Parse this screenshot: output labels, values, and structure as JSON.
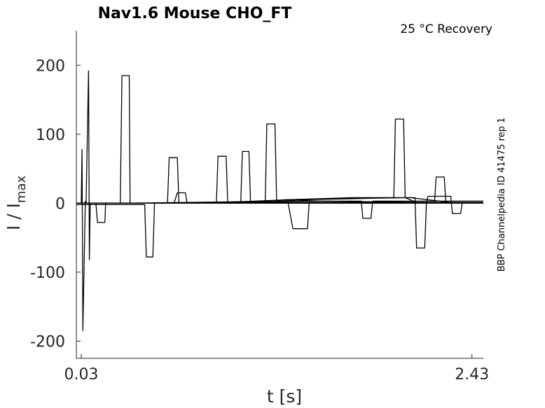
{
  "chart_data": {
    "type": "line",
    "title": "Nav1.6  Mouse  CHO_FT",
    "subtitle": "25 °C  Recovery",
    "xlabel": "t [s]",
    "ylabel_main": "I / I",
    "ylabel_sub": "max",
    "side_label": "BBP Channelpedia ID 41475 rep 1",
    "xlim": [
      0.0,
      2.5
    ],
    "ylim": [
      -225,
      250
    ],
    "x_ticks": [
      {
        "value": 0.03,
        "label": "0.03"
      },
      {
        "value": 2.43,
        "label": "2.43"
      }
    ],
    "y_ticks": [
      {
        "value": 200,
        "label": "200"
      },
      {
        "value": 100,
        "label": "100"
      },
      {
        "value": 0,
        "label": "0"
      },
      {
        "value": -100,
        "label": "-100"
      },
      {
        "value": -200,
        "label": "-200"
      }
    ],
    "grid": false,
    "line_color": "#000000",
    "series": [
      {
        "x": [
          0.0,
          0.03,
          0.035,
          0.04,
          0.055,
          0.06,
          0.3,
          1.0,
          1.3,
          1.7,
          1.9,
          2.05,
          2.3,
          2.5
        ],
        "y": [
          0,
          0,
          78,
          -185,
          3,
          0,
          0,
          2,
          5,
          8,
          8,
          8,
          1,
          1
        ]
      },
      {
        "x": [
          0.0,
          0.06,
          0.075,
          0.08,
          0.085,
          0.1,
          0.2,
          0.5,
          0.8,
          1.0,
          1.2,
          1.5,
          1.8,
          2.0,
          2.5
        ],
        "y": [
          0,
          0,
          192,
          -82,
          0,
          0,
          0,
          0,
          0,
          1,
          1,
          1,
          1,
          1,
          1
        ]
      },
      {
        "x": [
          0.0,
          0.12,
          0.13,
          0.175,
          0.18,
          0.6,
          0.62,
          0.67,
          0.68,
          1.0,
          1.5,
          2.0,
          2.5
        ],
        "y": [
          0,
          0,
          -28,
          -28,
          0,
          0,
          15,
          15,
          0,
          0,
          0,
          0,
          0
        ]
      },
      {
        "x": [
          0.0,
          0.27,
          0.28,
          0.325,
          0.33,
          0.36,
          0.8,
          1.2,
          1.5,
          2.0,
          2.5
        ],
        "y": [
          0,
          0,
          185,
          185,
          0,
          0,
          0,
          0,
          0,
          0,
          0
        ]
      },
      {
        "x": [
          0.0,
          0.42,
          0.43,
          0.47,
          0.48,
          0.9,
          1.3,
          1.33,
          1.42,
          1.43,
          2.5
        ],
        "y": [
          -2,
          -2,
          -78,
          -78,
          0,
          1,
          1,
          -37,
          -37,
          1,
          1
        ]
      },
      {
        "x": [
          0.0,
          0.56,
          0.57,
          0.62,
          0.63,
          1.0,
          1.5,
          1.75,
          1.76,
          1.81,
          1.82,
          2.5
        ],
        "y": [
          0,
          0,
          66,
          66,
          0,
          2,
          3,
          3,
          -22,
          -22,
          3,
          3
        ]
      },
      {
        "x": [
          0.0,
          0.86,
          0.87,
          0.92,
          0.93,
          1.3,
          1.6,
          1.95,
          1.96,
          2.01,
          2.02,
          2.1,
          2.5
        ],
        "y": [
          0,
          0,
          68,
          68,
          0,
          5,
          7,
          8,
          122,
          122,
          8,
          0,
          0
        ]
      },
      {
        "x": [
          0.0,
          1.01,
          1.02,
          1.06,
          1.07,
          1.4,
          1.8,
          2.08,
          2.09,
          2.14,
          2.15,
          2.5
        ],
        "y": [
          0,
          0,
          75,
          75,
          0,
          5,
          7,
          8,
          -65,
          -65,
          0,
          0
        ]
      },
      {
        "x": [
          0.0,
          1.16,
          1.17,
          1.22,
          1.23,
          1.28,
          1.5,
          2.2,
          2.21,
          2.26,
          2.27,
          2.5
        ],
        "y": [
          0,
          0,
          115,
          115,
          3,
          5,
          3,
          1,
          38,
          38,
          0,
          0
        ]
      },
      {
        "x": [
          0.0,
          0.3,
          0.8,
          1.3,
          1.8,
          2.15,
          2.16,
          2.3,
          2.31,
          2.36,
          2.37,
          2.5
        ],
        "y": [
          0,
          0,
          0,
          0,
          0,
          0,
          10,
          10,
          -15,
          -15,
          0,
          0
        ]
      }
    ]
  }
}
